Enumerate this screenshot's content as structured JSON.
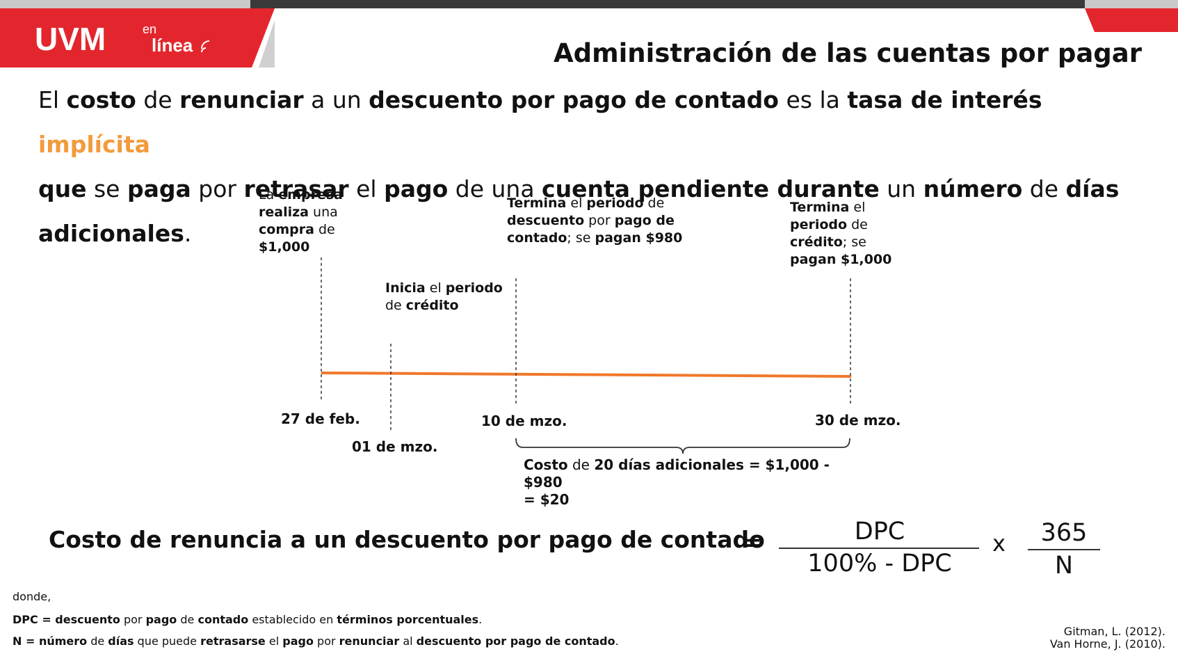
{
  "header": {
    "logo_main": "UVM",
    "logo_en": "en",
    "logo_linea": "línea",
    "title": "Administración de las cuentas por pagar"
  },
  "intro": {
    "t1": "El ",
    "b1": "costo",
    "t2": " de ",
    "b2": "renunciar",
    "t3": " a un ",
    "b3": "descuento por pago de contado",
    "t4": " es la ",
    "b4": "tasa de interés",
    "t5": " ",
    "accent": "implícita",
    "b5": "que",
    "t6": " se ",
    "b6": "paga",
    "t7": " por ",
    "b7": "retrasar",
    "t8": " el ",
    "b8": "pago",
    "t9": " de una ",
    "b9": "cuenta pendiente durante",
    "t10": " un ",
    "b10": "número",
    "t11": " de ",
    "b11": "días",
    "b12": "adicionales",
    "t12": "."
  },
  "timeline": {
    "event1": {
      "t1": "La ",
      "b1": "empresa",
      "b2": "realiza",
      "t2": " una",
      "b3": "compra",
      "t3": " de",
      "b4": "$1,000"
    },
    "event2": {
      "b1": "Inicia",
      "t1": " el ",
      "b2": "periodo",
      "t2": "de ",
      "b3": "crédito"
    },
    "event3": {
      "b1": "Termina",
      "t1": " el ",
      "b2": "periodo",
      "t2": " de",
      "b3": "descuento",
      "t3": " por ",
      "b4": "pago de",
      "b5": "contado",
      "t4": "; se ",
      "b6": "pagan $980"
    },
    "event4": {
      "b1": "Termina",
      "t1": " el",
      "b2": "periodo",
      "t2": " de",
      "b3": "crédito",
      "t3": "; se",
      "b4": "pagan $1,000"
    },
    "dates": {
      "d1": "27 de feb.",
      "d2": "01 de mzo.",
      "d3": "10 de mzo.",
      "d4": "30 de mzo."
    },
    "cost": {
      "t1": "Costo",
      "t2": " de ",
      "t3": "20 días adicionales",
      "t4": " = $1,000 - $980",
      "t5": "= $20"
    },
    "line_color": "#f0782a"
  },
  "formula": {
    "label": "Costo de renuncia a un descuento por pago de contado",
    "equals": "=",
    "num1": "DPC",
    "den1": "100% - DPC",
    "times": "x",
    "num2": "365",
    "den2": "N"
  },
  "notes": {
    "donde": "donde,",
    "dpc": {
      "b1": "DPC = descuento",
      "t1": " por ",
      "b2": "pago",
      "t2": " de ",
      "b3": "contado",
      "t3": " establecido en ",
      "b4": "términos porcentuales",
      "t4": "."
    },
    "n": {
      "b1": "N = número",
      "t1": " de ",
      "b2": "días",
      "t2": " que puede ",
      "b3": "retrasarse",
      "t3": " el ",
      "b4": "pago",
      "t4": " por ",
      "b5": "renunciar",
      "t5": " al ",
      "b6": "descuento por pago de contado",
      "t6": "."
    }
  },
  "references": {
    "r1": "Gitman, L. (2012).",
    "r2": "Van Horne, J. (2010)."
  },
  "colors": {
    "brand_red": "#e3262d",
    "accent_orange": "#f39a3c"
  }
}
